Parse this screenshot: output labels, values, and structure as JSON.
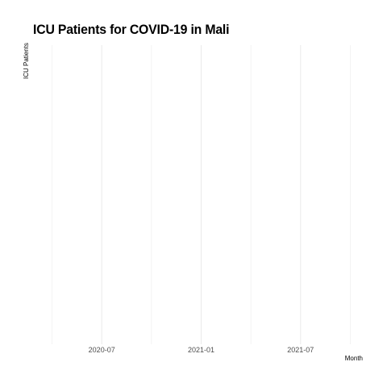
{
  "chart_data": {
    "type": "line",
    "title": "ICU Patients for COVID-19 in Mali",
    "xlabel": "Month",
    "ylabel": "ICU Patients",
    "x_ticks": [
      "2020-07",
      "2021-01",
      "2021-07"
    ],
    "x_minor_ticks": [
      "2020-04",
      "2020-10",
      "2021-04",
      "2021-10"
    ],
    "xlim": [
      "2020-04",
      "2021-10"
    ],
    "series": [],
    "grid": true,
    "grid_color": "#ebebeb",
    "tick_label_color": "#4d4d4d"
  }
}
